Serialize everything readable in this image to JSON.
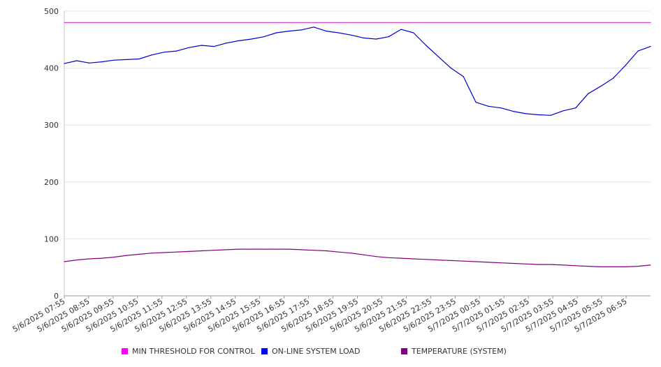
{
  "chart_data": {
    "type": "line",
    "title": "",
    "xlabel": "",
    "ylabel": "",
    "ylim": [
      0,
      500
    ],
    "yticks": [
      0,
      100,
      200,
      300,
      400,
      500
    ],
    "grid": "horizontal",
    "legend_position": "bottom",
    "x_tick_labels": [
      "5/6/2025 07:55",
      "5/6/2025 08:55",
      "5/6/2025 09:55",
      "5/6/2025 10:55",
      "5/6/2025 11:55",
      "5/6/2025 12:55",
      "5/6/2025 13:55",
      "5/6/2025 14:55",
      "5/6/2025 15:55",
      "5/6/2025 16:55",
      "5/6/2025 17:55",
      "5/6/2025 18:55",
      "5/6/2025 19:55",
      "5/6/2025 20:55",
      "5/6/2025 21:55",
      "5/6/2025 22:55",
      "5/6/2025 23:55",
      "5/7/2025 00:55",
      "5/7/2025 01:55",
      "5/7/2025 02:55",
      "5/7/2025 03:55",
      "5/7/2025 04:55",
      "5/7/2025 05:55",
      "5/7/2025 06:55"
    ],
    "x": [
      "5/6/2025 07:55",
      "5/6/2025 08:25",
      "5/6/2025 08:55",
      "5/6/2025 09:25",
      "5/6/2025 09:55",
      "5/6/2025 10:25",
      "5/6/2025 10:55",
      "5/6/2025 11:25",
      "5/6/2025 11:55",
      "5/6/2025 12:25",
      "5/6/2025 12:55",
      "5/6/2025 13:25",
      "5/6/2025 13:55",
      "5/6/2025 14:25",
      "5/6/2025 14:55",
      "5/6/2025 15:25",
      "5/6/2025 15:55",
      "5/6/2025 16:25",
      "5/6/2025 16:55",
      "5/6/2025 17:25",
      "5/6/2025 17:55",
      "5/6/2025 18:25",
      "5/6/2025 18:55",
      "5/6/2025 19:25",
      "5/6/2025 19:55",
      "5/6/2025 20:25",
      "5/6/2025 20:55",
      "5/6/2025 21:25",
      "5/6/2025 21:55",
      "5/6/2025 22:25",
      "5/6/2025 22:55",
      "5/6/2025 23:25",
      "5/6/2025 23:55",
      "5/7/2025 00:25",
      "5/7/2025 00:55",
      "5/7/2025 01:25",
      "5/7/2025 01:55",
      "5/7/2025 02:25",
      "5/7/2025 02:55",
      "5/7/2025 03:25",
      "5/7/2025 03:55",
      "5/7/2025 04:25",
      "5/7/2025 04:55",
      "5/7/2025 05:25",
      "5/7/2025 05:55",
      "5/7/2025 06:25",
      "5/7/2025 06:55",
      "5/7/2025 07:25"
    ],
    "series": [
      {
        "name": "MIN THRESHOLD FOR CONTROL",
        "color": "#cc33cc",
        "legend_color": "#ff00ff",
        "values": [
          480,
          480,
          480,
          480,
          480,
          480,
          480,
          480,
          480,
          480,
          480,
          480,
          480,
          480,
          480,
          480,
          480,
          480,
          480,
          480,
          480,
          480,
          480,
          480,
          480,
          480,
          480,
          480,
          480,
          480,
          480,
          480,
          480,
          480,
          480,
          480,
          480,
          480,
          480,
          480,
          480,
          480,
          480,
          480,
          480,
          480,
          480,
          480
        ]
      },
      {
        "name": "ON-LINE SYSTEM LOAD",
        "color": "#0000cc",
        "legend_color": "#0000ff",
        "values": [
          408,
          413,
          409,
          411,
          414,
          415,
          416,
          423,
          428,
          430,
          436,
          440,
          438,
          444,
          448,
          451,
          455,
          462,
          465,
          467,
          472,
          465,
          462,
          458,
          453,
          451,
          455,
          468,
          462,
          440,
          420,
          400,
          385,
          340,
          333,
          330,
          324,
          320,
          318,
          317,
          325,
          330,
          355,
          368,
          382,
          405,
          430,
          438
        ]
      },
      {
        "name": "TEMPERATURE (SYSTEM)",
        "color": "#800080",
        "legend_color": "#800080",
        "values": [
          60,
          63,
          65,
          66,
          68,
          71,
          73,
          75,
          76,
          77,
          78,
          79,
          80,
          81,
          82,
          82,
          82,
          82,
          82,
          81,
          80,
          79,
          77,
          75,
          72,
          69,
          67,
          66,
          65,
          64,
          63,
          62,
          61,
          60,
          59,
          58,
          57,
          56,
          55,
          55,
          54,
          53,
          52,
          51,
          51,
          51,
          52,
          54
        ]
      }
    ]
  }
}
